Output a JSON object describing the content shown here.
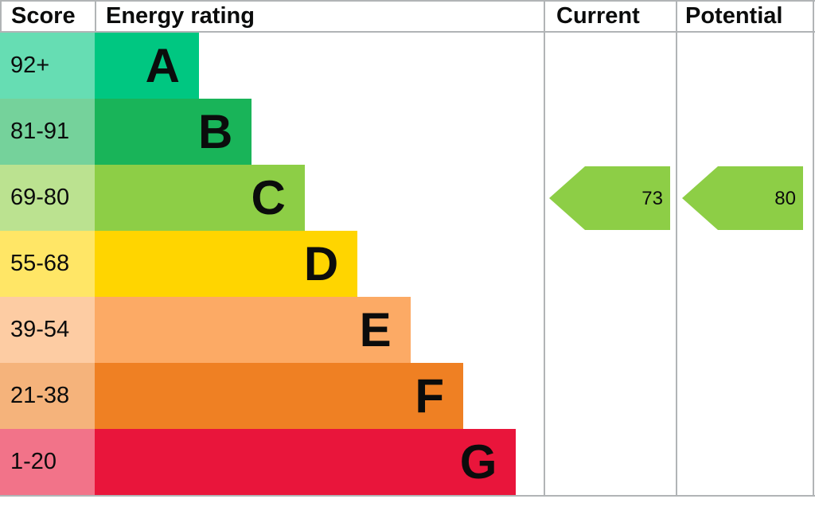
{
  "header": {
    "score": "Score",
    "energy_rating": "Energy rating",
    "current": "Current",
    "potential": "Potential"
  },
  "chart_data": {
    "type": "bar",
    "description": "EPC energy efficiency rating ladder",
    "bands": [
      {
        "letter": "A",
        "score_range": "92+",
        "color": "#00c781"
      },
      {
        "letter": "B",
        "score_range": "81-91",
        "color": "#19b459"
      },
      {
        "letter": "C",
        "score_range": "69-80",
        "color": "#8dce46"
      },
      {
        "letter": "D",
        "score_range": "55-68",
        "color": "#ffd500"
      },
      {
        "letter": "E",
        "score_range": "39-54",
        "color": "#fcaa65"
      },
      {
        "letter": "F",
        "score_range": "21-38",
        "color": "#ef8023"
      },
      {
        "letter": "G",
        "score_range": "1-20",
        "color": "#e9153b"
      }
    ],
    "current": {
      "value": 73,
      "band": "C",
      "arrow_color": "#8dce46"
    },
    "potential": {
      "value": 80,
      "band": "C",
      "arrow_color": "#8dce46"
    }
  },
  "colors": {
    "border_gray": "#b1b4b6",
    "text": "#0b0c0c",
    "background": "#ffffff"
  }
}
